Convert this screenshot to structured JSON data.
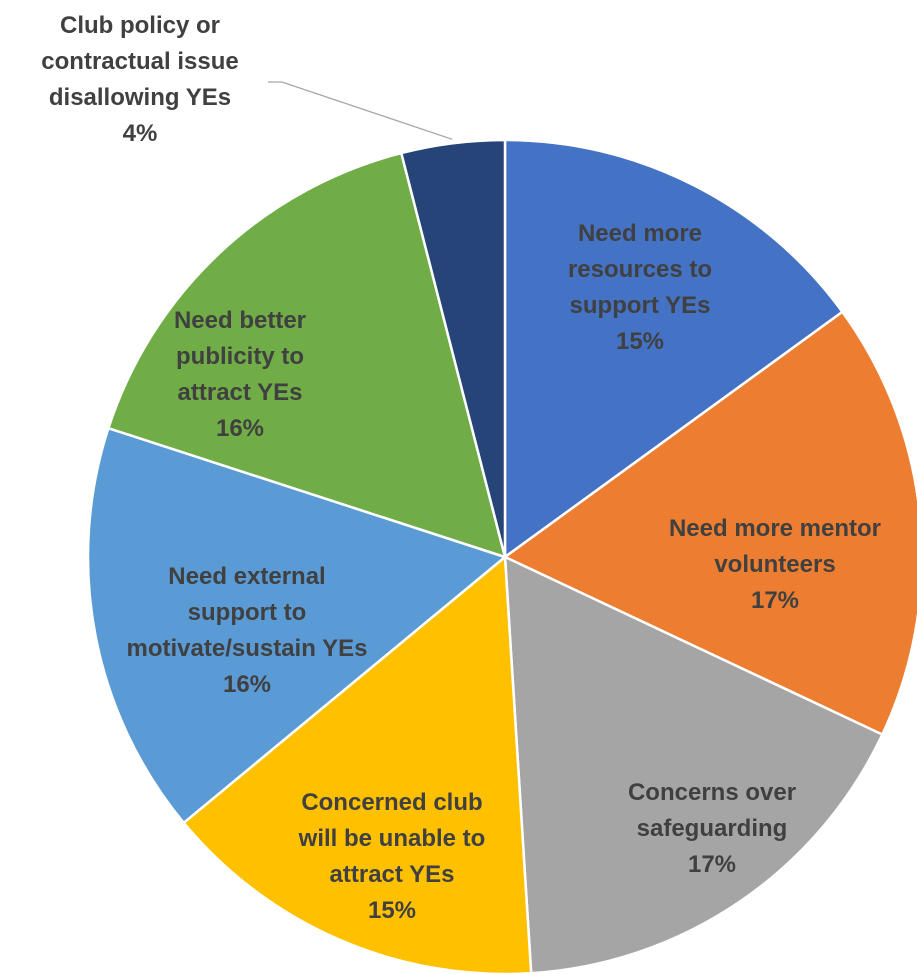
{
  "chart_data": {
    "type": "pie",
    "title": "",
    "colors_note": "slice colors in order",
    "slices": [
      {
        "label_lines": [
          "Need more",
          "resources to",
          "support YEs"
        ],
        "percent_label": "15%",
        "value": 15,
        "color": "#4472c4"
      },
      {
        "label_lines": [
          "Need more mentor",
          "volunteers"
        ],
        "percent_label": "17%",
        "value": 17,
        "color": "#ed7d31"
      },
      {
        "label_lines": [
          "Concerns over",
          "safeguarding"
        ],
        "percent_label": "17%",
        "value": 17,
        "color": "#a5a5a5"
      },
      {
        "label_lines": [
          "Concerned club",
          "will be unable to",
          "attract YEs"
        ],
        "percent_label": "15%",
        "value": 15,
        "color": "#ffc000"
      },
      {
        "label_lines": [
          "Need external",
          "support to",
          "motivate/sustain YEs"
        ],
        "percent_label": "16%",
        "value": 16,
        "color": "#5b9bd5"
      },
      {
        "label_lines": [
          "Need better",
          "publicity to",
          "attract YEs"
        ],
        "percent_label": "16%",
        "value": 16,
        "color": "#70ad47"
      },
      {
        "label_lines": [
          "Club policy or",
          "contractual issue",
          "disallowing YEs"
        ],
        "percent_label": "4%",
        "value": 4,
        "color": "#264478"
      }
    ]
  }
}
